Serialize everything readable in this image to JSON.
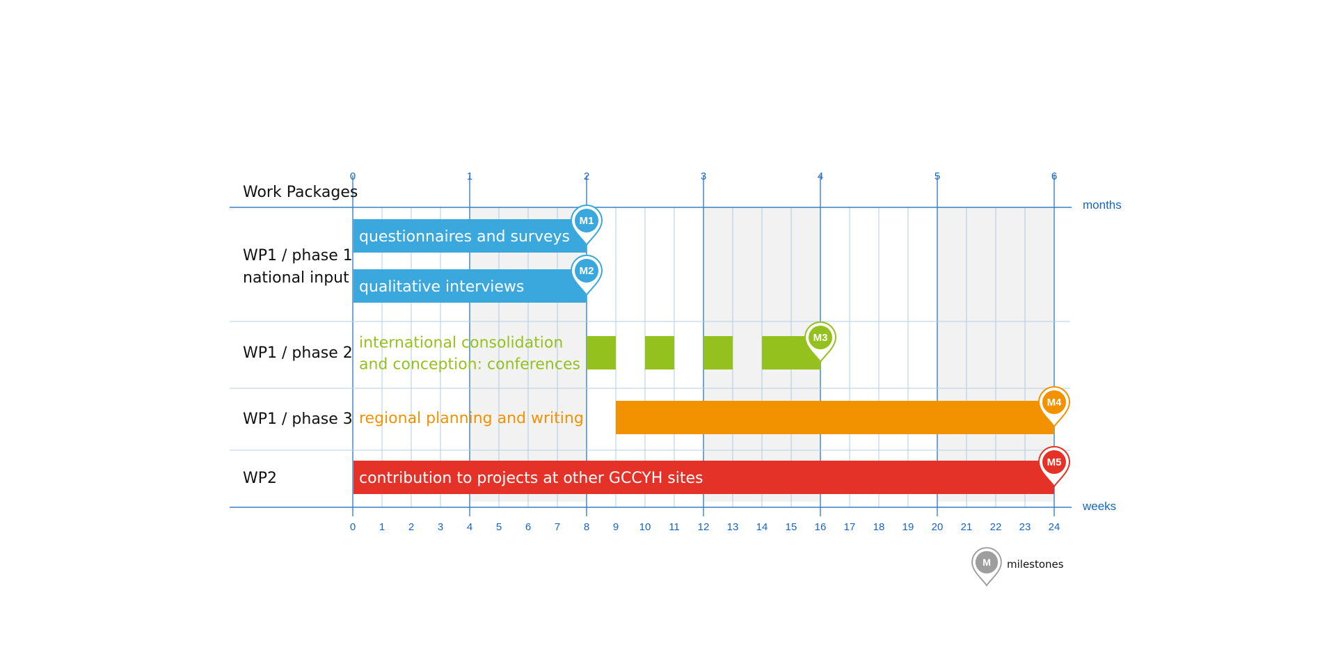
{
  "chart_data": {
    "type": "gantt",
    "title": "Work Packages",
    "axis_top": {
      "label": "months",
      "ticks": [
        "0",
        "1",
        "2",
        "3",
        "4",
        "5",
        "6"
      ]
    },
    "axis_bottom": {
      "label": "weeks",
      "ticks": [
        "0",
        "1",
        "2",
        "3",
        "4",
        "5",
        "6",
        "7",
        "8",
        "9",
        "10",
        "11",
        "12",
        "13",
        "14",
        "15",
        "16",
        "17",
        "18",
        "19",
        "20",
        "21",
        "22",
        "23",
        "24"
      ]
    },
    "xlim": [
      0,
      24
    ],
    "shaded_week_ranges": [
      [
        4,
        8
      ],
      [
        12,
        16
      ],
      [
        20,
        24
      ]
    ],
    "colors": {
      "blue": "#3aa8dc",
      "green": "#95c11f",
      "orange": "#f39200",
      "red": "#e53229",
      "grid": "#9fbfd6",
      "axis": "#3a7fc1",
      "shade": "#f2f2f2",
      "milestone_legend": "#9e9e9e"
    },
    "rows": [
      {
        "label_lines": [
          "WP1 /  phase 1",
          "national input"
        ]
      },
      {
        "label_lines": [
          "WP1 / phase 2"
        ]
      },
      {
        "label_lines": [
          "WP1 / phase 3"
        ]
      },
      {
        "label_lines": [
          "WP2"
        ]
      }
    ],
    "tasks": [
      {
        "name": "questionnaires and surveys",
        "row": 0,
        "lane": 0,
        "color": "#3aa8dc",
        "segments": [
          [
            0,
            8
          ]
        ],
        "label_lines": [
          "questionnaires and surveys"
        ],
        "label_inside": true,
        "milestone": "M1",
        "milestone_week": 8
      },
      {
        "name": "qualitative interviews",
        "row": 0,
        "lane": 1,
        "color": "#3aa8dc",
        "segments": [
          [
            0,
            8
          ]
        ],
        "label_lines": [
          "qualitative interviews"
        ],
        "label_inside": true,
        "milestone": "M2",
        "milestone_week": 8
      },
      {
        "name": "international consolidation and conception: conferences",
        "row": 1,
        "lane": 0,
        "color": "#95c11f",
        "segments": [
          [
            8,
            9
          ],
          [
            10,
            11
          ],
          [
            12,
            13
          ],
          [
            14,
            16
          ]
        ],
        "label_lines": [
          "international consolidation",
          "and conception: conferences"
        ],
        "label_inside": false,
        "milestone": "M3",
        "milestone_week": 16
      },
      {
        "name": "regional planning and writing",
        "row": 2,
        "lane": 0,
        "color": "#f39200",
        "segments": [
          [
            9,
            24
          ]
        ],
        "label_lines": [
          "regional planning and writing"
        ],
        "label_inside": false,
        "milestone": "M4",
        "milestone_week": 24
      },
      {
        "name": "contribution to projects at other GCCYH sites",
        "row": 3,
        "lane": 0,
        "color": "#e53229",
        "segments": [
          [
            0,
            24
          ]
        ],
        "label_lines": [
          "contribution to projects at other GCCYH sites"
        ],
        "label_inside": true,
        "milestone": "M5",
        "milestone_week": 24
      }
    ],
    "legend": {
      "marker": "M",
      "label": "milestones"
    }
  }
}
